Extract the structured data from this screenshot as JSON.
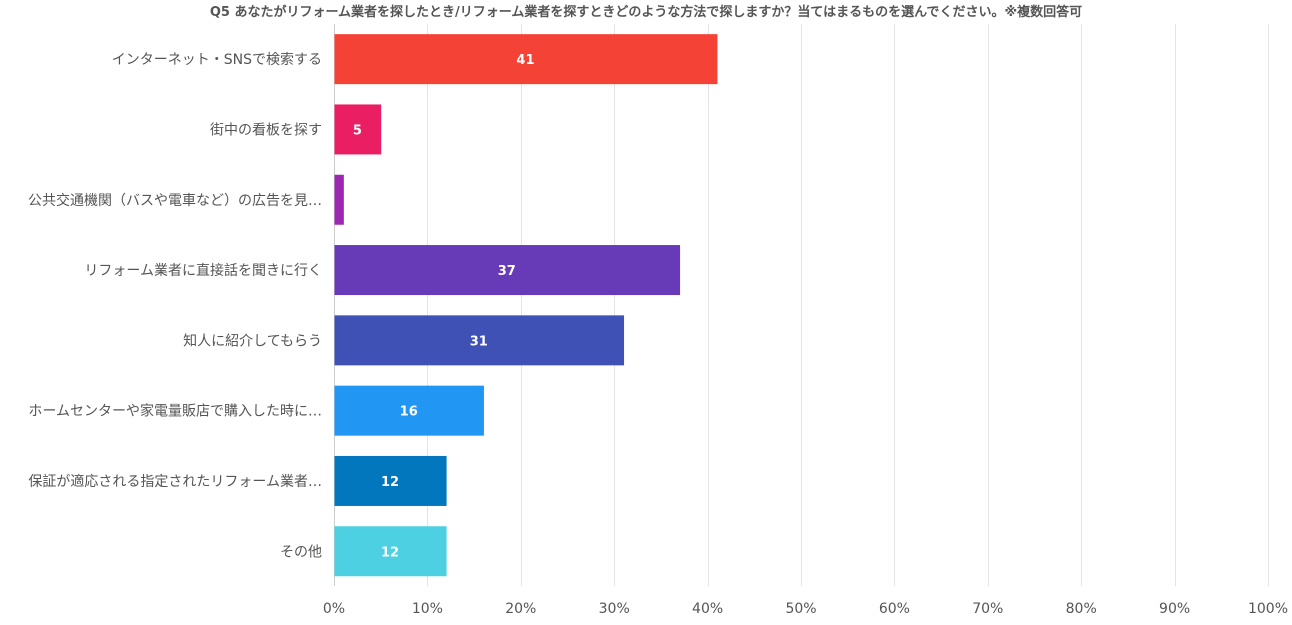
{
  "chart_data": {
    "type": "bar",
    "orientation": "horizontal",
    "title": "Q5 あなたがリフォーム業者を探したとき/リフォーム業者を探すときどのような方法で探しますか？当てはまるものを選んでください。※複数回答可",
    "categories": [
      "インターネット・SNSで検索する",
      "街中の看板を探す",
      "公共交通機関（バスや電車など）の広告を見…",
      "リフォーム業者に直接話を聞きに行く",
      "知人に紹介してもらう",
      "ホームセンターや家電量販店で購入した時に…",
      "保証が適応される指定されたリフォーム業者…",
      "その他"
    ],
    "values": [
      41,
      5,
      1,
      37,
      31,
      16,
      12,
      12
    ],
    "data_labels": [
      "41",
      "5",
      "",
      "37",
      "31",
      "16",
      "12",
      "12"
    ],
    "colors": [
      "#f44336",
      "#e91e63",
      "#9c27b0",
      "#673ab7",
      "#3f51b5",
      "#2196f3",
      "#0277bd",
      "#4dd0e1"
    ],
    "xlim": [
      0,
      100
    ],
    "xticks": [
      0,
      10,
      20,
      30,
      40,
      50,
      60,
      70,
      80,
      90,
      100
    ],
    "xtick_labels": [
      "0%",
      "10%",
      "20%",
      "30%",
      "40%",
      "50%",
      "60%",
      "70%",
      "80%",
      "90%",
      "100%"
    ],
    "xlabel": "",
    "ylabel": "",
    "grid": true,
    "legend": "none"
  }
}
